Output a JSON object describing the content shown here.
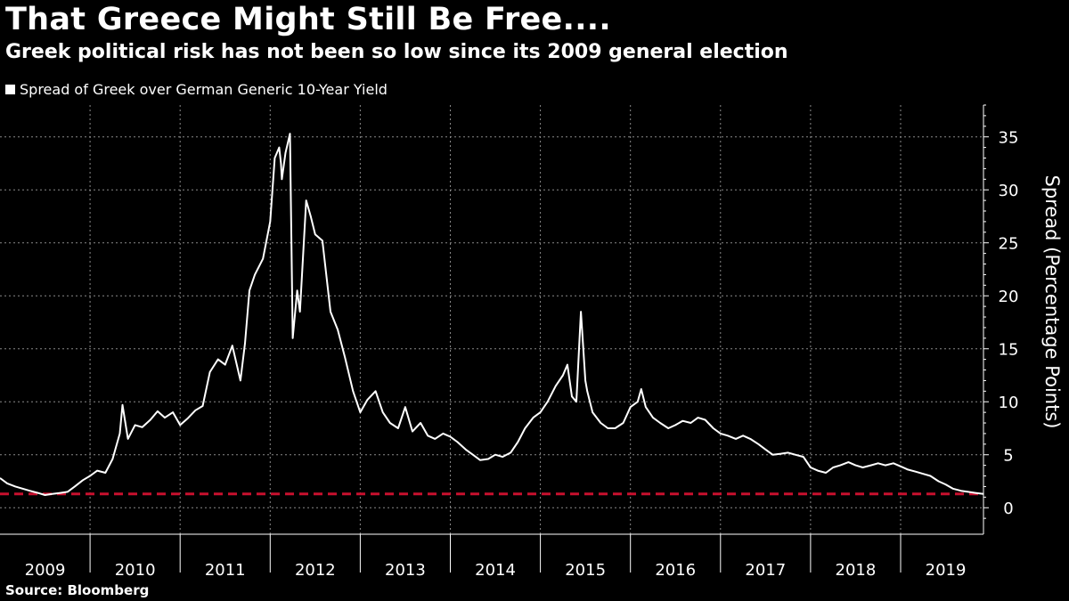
{
  "header": {
    "title": "That Greece Might Still Be Free....",
    "subtitle": "Greek political risk has not been so low since its 2009 general election"
  },
  "legend": {
    "label": "Spread of Greek over German Generic 10-Year Yield"
  },
  "footer": {
    "source": "Source: Bloomberg"
  },
  "colors": {
    "background": "#000000",
    "line": "#ffffff",
    "reference_line": "#c8102e",
    "grid": "#8a8a8a"
  },
  "chart_data": {
    "type": "line",
    "title": "That Greece Might Still Be Free....",
    "subtitle": "Greek political risk has not been so low since its 2009 general election",
    "xlabel": "",
    "ylabel": "Spread (Percentage Points)",
    "xlim": [
      2009.0,
      2019.92
    ],
    "ylim": [
      -2.5,
      38
    ],
    "yticks": [
      0,
      5,
      10,
      15,
      20,
      25,
      30,
      35
    ],
    "xticks": [
      2009,
      2010,
      2011,
      2012,
      2013,
      2014,
      2015,
      2016,
      2017,
      2018,
      2019
    ],
    "x_tick_labels": [
      "2009",
      "2010",
      "2011",
      "2012",
      "2013",
      "2014",
      "2015",
      "2016",
      "2017",
      "2018",
      "2019"
    ],
    "grid": true,
    "legend_position": "top-left",
    "reference_line": {
      "y": 1.3,
      "style": "dashed",
      "color": "#c8102e"
    },
    "series": [
      {
        "name": "Spread of Greek over German Generic 10-Year Yield",
        "x": [
          2009.0,
          2009.08,
          2009.17,
          2009.25,
          2009.33,
          2009.42,
          2009.5,
          2009.58,
          2009.67,
          2009.75,
          2009.83,
          2009.92,
          2010.0,
          2010.08,
          2010.17,
          2010.25,
          2010.33,
          2010.36,
          2010.42,
          2010.5,
          2010.58,
          2010.67,
          2010.75,
          2010.83,
          2010.92,
          2011.0,
          2011.08,
          2011.17,
          2011.25,
          2011.33,
          2011.42,
          2011.5,
          2011.58,
          2011.67,
          2011.72,
          2011.77,
          2011.83,
          2011.92,
          2012.0,
          2012.05,
          2012.1,
          2012.12,
          2012.13,
          2012.17,
          2012.22,
          2012.25,
          2012.3,
          2012.33,
          2012.4,
          2012.45,
          2012.5,
          2012.58,
          2012.67,
          2012.75,
          2012.83,
          2012.92,
          2013.0,
          2013.08,
          2013.17,
          2013.25,
          2013.33,
          2013.42,
          2013.5,
          2013.58,
          2013.67,
          2013.75,
          2013.83,
          2013.92,
          2014.0,
          2014.08,
          2014.17,
          2014.25,
          2014.33,
          2014.42,
          2014.5,
          2014.58,
          2014.67,
          2014.75,
          2014.83,
          2014.92,
          2015.0,
          2015.08,
          2015.17,
          2015.25,
          2015.3,
          2015.35,
          2015.4,
          2015.45,
          2015.5,
          2015.52,
          2015.55,
          2015.58,
          2015.67,
          2015.75,
          2015.83,
          2015.92,
          2016.0,
          2016.08,
          2016.12,
          2016.17,
          2016.25,
          2016.33,
          2016.42,
          2016.5,
          2016.58,
          2016.67,
          2016.75,
          2016.83,
          2016.92,
          2017.0,
          2017.08,
          2017.17,
          2017.25,
          2017.33,
          2017.42,
          2017.5,
          2017.58,
          2017.67,
          2017.75,
          2017.83,
          2017.92,
          2018.0,
          2018.08,
          2018.17,
          2018.25,
          2018.33,
          2018.42,
          2018.5,
          2018.58,
          2018.67,
          2018.75,
          2018.83,
          2018.92,
          2019.0,
          2019.08,
          2019.17,
          2019.25,
          2019.33,
          2019.42,
          2019.5,
          2019.58,
          2019.67,
          2019.75,
          2019.83,
          2019.92
        ],
        "values": [
          2.8,
          2.3,
          2.0,
          1.8,
          1.6,
          1.4,
          1.2,
          1.3,
          1.4,
          1.5,
          2.0,
          2.6,
          3.0,
          3.5,
          3.3,
          4.6,
          7.0,
          9.7,
          6.5,
          7.8,
          7.6,
          8.3,
          9.1,
          8.5,
          9.0,
          7.8,
          8.4,
          9.2,
          9.6,
          12.8,
          14.0,
          13.5,
          15.3,
          12.0,
          15.5,
          20.5,
          22.0,
          23.5,
          27.0,
          33.0,
          34.0,
          32.5,
          31.0,
          33.5,
          35.3,
          16.0,
          20.5,
          18.5,
          29.0,
          27.5,
          25.8,
          25.2,
          18.5,
          16.8,
          14.2,
          11.0,
          9.0,
          10.2,
          11.0,
          9.0,
          8.0,
          7.5,
          9.5,
          7.2,
          8.0,
          6.8,
          6.5,
          7.0,
          6.7,
          6.2,
          5.5,
          5.0,
          4.5,
          4.6,
          5.0,
          4.8,
          5.2,
          6.2,
          7.5,
          8.5,
          9.0,
          10.0,
          11.5,
          12.5,
          13.5,
          10.5,
          10.0,
          18.5,
          12.0,
          11.0,
          10.0,
          9.0,
          8.0,
          7.5,
          7.5,
          8.0,
          9.5,
          10.0,
          11.2,
          9.5,
          8.5,
          8.0,
          7.5,
          7.8,
          8.2,
          8.0,
          8.5,
          8.3,
          7.5,
          7.0,
          6.8,
          6.5,
          6.8,
          6.5,
          6.0,
          5.5,
          5.0,
          5.1,
          5.2,
          5.0,
          4.8,
          3.8,
          3.5,
          3.3,
          3.8,
          4.0,
          4.3,
          4.0,
          3.8,
          4.0,
          4.2,
          4.0,
          4.2,
          3.9,
          3.6,
          3.4,
          3.2,
          3.0,
          2.5,
          2.2,
          1.8,
          1.6,
          1.5,
          1.4,
          1.3
        ]
      }
    ]
  }
}
